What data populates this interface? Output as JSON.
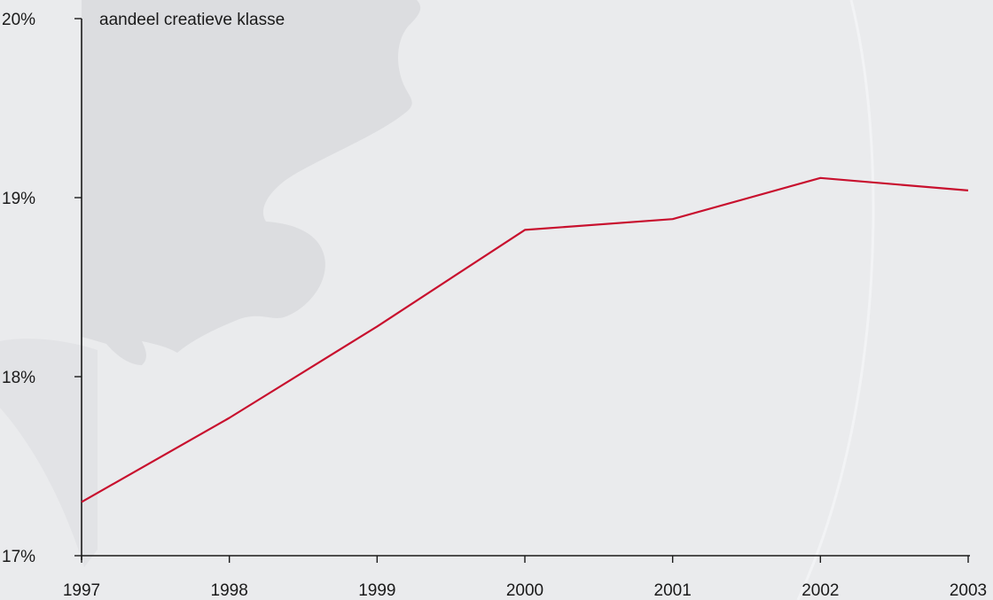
{
  "chart_data": {
    "type": "line",
    "title": "",
    "xlabel": "",
    "ylabel": "",
    "x": [
      "1997",
      "1998",
      "1999",
      "2000",
      "2001",
      "2002",
      "2003"
    ],
    "series": [
      {
        "name": "aandeel creatieve klasse",
        "color": "#c8102e",
        "values": [
          17.3,
          17.77,
          18.28,
          18.82,
          18.88,
          19.11,
          19.04
        ]
      }
    ],
    "ylim": [
      17,
      20
    ],
    "yticks": [
      17,
      18,
      19,
      20
    ],
    "ytick_labels": [
      "17%",
      "18%",
      "19%",
      "20%"
    ],
    "grid": false,
    "legend": "none"
  }
}
